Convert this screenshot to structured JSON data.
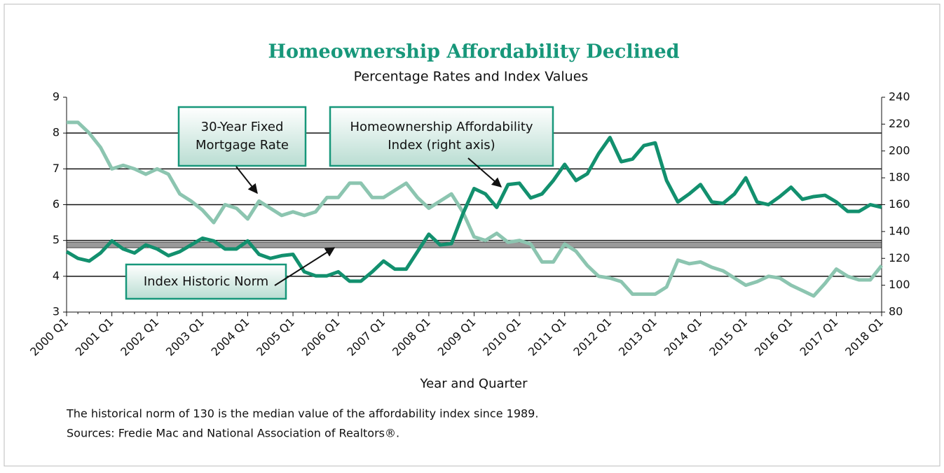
{
  "chart_data": {
    "type": "line",
    "title": "Homeownership Affordability Declined",
    "subtitle": "Percentage Rates and Index Values",
    "xlabel": "Year and Quarter",
    "categories": [
      "2000 Q1",
      null,
      null,
      null,
      "2001 Q1",
      null,
      null,
      null,
      "2002 Q1",
      null,
      null,
      null,
      "2003 Q1",
      null,
      null,
      null,
      "2004 Q1",
      null,
      null,
      null,
      "2005 Q1",
      null,
      null,
      null,
      "2006 Q1",
      null,
      null,
      null,
      "2007 Q1",
      null,
      null,
      null,
      "2008 Q1",
      null,
      null,
      null,
      "2009 Q1",
      null,
      null,
      null,
      "2010 Q1",
      null,
      null,
      null,
      "2011 Q1",
      null,
      null,
      null,
      "2012 Q1",
      null,
      null,
      null,
      "2013 Q1",
      null,
      null,
      null,
      "2014 Q1",
      null,
      null,
      null,
      "2015 Q1",
      null,
      null,
      null,
      "2016 Q1",
      null,
      null,
      null,
      "2017 Q1",
      null,
      null,
      null,
      "2018 Q1"
    ],
    "series": [
      {
        "name": "30-Year Fixed Mortgage Rate",
        "color": "#8cc5b0",
        "values": [
          8.3,
          8.3,
          8.0,
          7.6,
          7.0,
          7.1,
          7.0,
          6.85,
          7.0,
          6.85,
          6.3,
          6.1,
          5.85,
          5.5,
          6.0,
          5.9,
          5.6,
          6.1,
          5.9,
          5.7,
          5.8,
          5.7,
          5.8,
          6.2,
          6.2,
          6.6,
          6.6,
          6.2,
          6.2,
          6.4,
          6.6,
          6.2,
          5.9,
          6.1,
          6.3,
          5.8,
          5.1,
          5.0,
          5.2,
          4.95,
          5.0,
          4.9,
          4.4,
          4.4,
          4.9,
          4.7,
          4.3,
          4.0,
          3.95,
          3.85,
          3.5,
          3.5,
          3.5,
          3.7,
          4.45,
          4.35,
          4.4,
          4.25,
          4.15,
          3.95,
          3.75,
          3.85,
          4.0,
          3.95,
          3.75,
          3.6,
          3.45,
          3.8,
          4.2,
          4.0,
          3.9,
          3.9,
          4.3
        ]
      },
      {
        "name": "Homeownership Affordability Index (right axis)",
        "color": "#12906e",
        "axis": "y2",
        "values": [
          125,
          120,
          118,
          124,
          133,
          127,
          124,
          130,
          127,
          122,
          125,
          130,
          135,
          133,
          127,
          127,
          133,
          123,
          120,
          122,
          123,
          110,
          107,
          107,
          110,
          103,
          103,
          110,
          118,
          112,
          112,
          125,
          138,
          130,
          131,
          153,
          172,
          168,
          158,
          175,
          176,
          165,
          168,
          178,
          190,
          178,
          183,
          198,
          210,
          192,
          194,
          204,
          206,
          178,
          162,
          168,
          175,
          162,
          161,
          168,
          180,
          162,
          160,
          166,
          173,
          164,
          166,
          167,
          162,
          155,
          155,
          160,
          158
        ]
      }
    ],
    "reference_line": {
      "label": "Index Historic Norm",
      "value": 130,
      "axis": "y2",
      "color": "#9a9a9a"
    },
    "annotations": [
      [
        "30-Year Fixed",
        "Mortgage Rate"
      ],
      [
        "Homeownership Affordability",
        "Index (right axis)"
      ]
    ],
    "ylim": [
      3,
      9
    ],
    "yticks": [
      3,
      4,
      5,
      6,
      7,
      8,
      9
    ],
    "y2lim": [
      80,
      240
    ],
    "y2ticks": [
      80,
      100,
      120,
      140,
      160,
      180,
      200,
      220,
      240
    ],
    "grid": true,
    "notes": [
      "The historical norm of 130 is the median value of the affordability index since 1989.",
      "Sources: Fredie Mac and National Association of Realtors®."
    ]
  }
}
